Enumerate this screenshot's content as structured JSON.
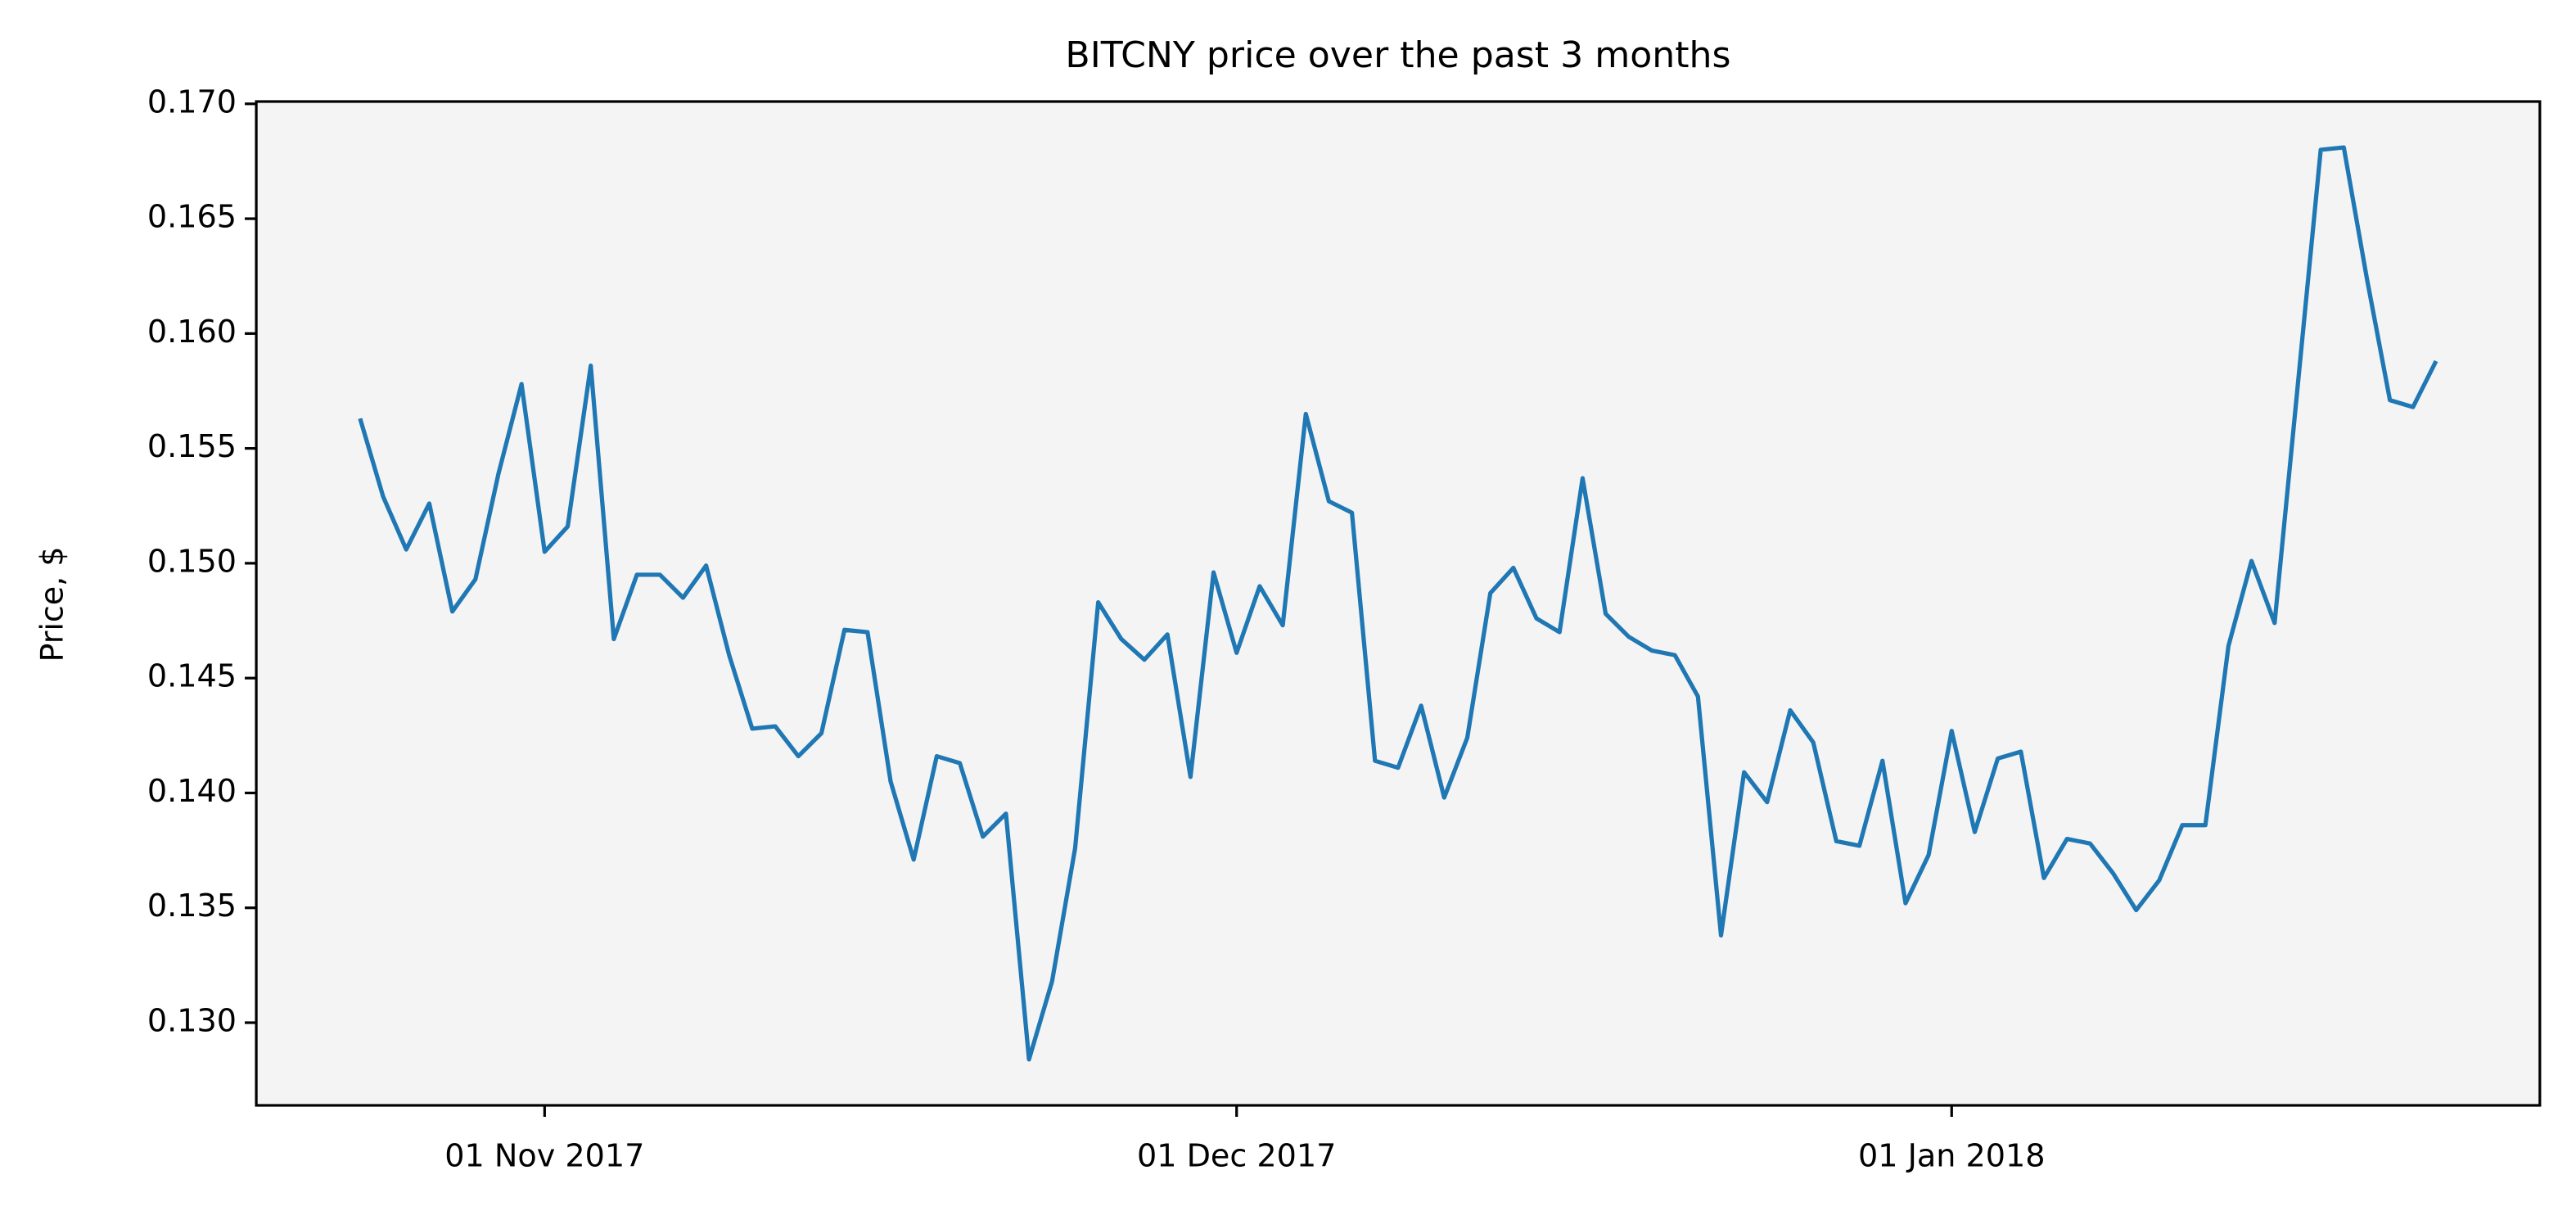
{
  "chart_data": {
    "type": "line",
    "title": "BITCNY price over the past 3 months",
    "y_label": "Price, $",
    "x": [
      "2017-10-24",
      "2017-10-25",
      "2017-10-26",
      "2017-10-27",
      "2017-10-28",
      "2017-10-29",
      "2017-10-30",
      "2017-10-31",
      "2017-11-01",
      "2017-11-02",
      "2017-11-03",
      "2017-11-04",
      "2017-11-05",
      "2017-11-06",
      "2017-11-07",
      "2017-11-08",
      "2017-11-09",
      "2017-11-10",
      "2017-11-11",
      "2017-11-12",
      "2017-11-13",
      "2017-11-14",
      "2017-11-15",
      "2017-11-16",
      "2017-11-17",
      "2017-11-18",
      "2017-11-19",
      "2017-11-20",
      "2017-11-21",
      "2017-11-22",
      "2017-11-23",
      "2017-11-24",
      "2017-11-25",
      "2017-11-26",
      "2017-11-27",
      "2017-11-28",
      "2017-11-29",
      "2017-11-30",
      "2017-12-01",
      "2017-12-02",
      "2017-12-03",
      "2017-12-04",
      "2017-12-05",
      "2017-12-06",
      "2017-12-07",
      "2017-12-08",
      "2017-12-09",
      "2017-12-10",
      "2017-12-11",
      "2017-12-12",
      "2017-12-13",
      "2017-12-14",
      "2017-12-15",
      "2017-12-16",
      "2017-12-17",
      "2017-12-18",
      "2017-12-19",
      "2017-12-20",
      "2017-12-21",
      "2017-12-22",
      "2017-12-23",
      "2017-12-24",
      "2017-12-25",
      "2017-12-26",
      "2017-12-27",
      "2017-12-28",
      "2017-12-29",
      "2017-12-30",
      "2017-12-31",
      "2018-01-01",
      "2018-01-02",
      "2018-01-03",
      "2018-01-04",
      "2018-01-05",
      "2018-01-06",
      "2018-01-07",
      "2018-01-08",
      "2018-01-09",
      "2018-01-10",
      "2018-01-11",
      "2018-01-12",
      "2018-01-13",
      "2018-01-14",
      "2018-01-15",
      "2018-01-16",
      "2018-01-17",
      "2018-01-18",
      "2018-01-19",
      "2018-01-20",
      "2018-01-21",
      "2018-01-22"
    ],
    "series": [
      {
        "color": "#1f77b4",
        "values": [
          0.1563,
          0.1529,
          0.1506,
          0.1526,
          0.1479,
          0.1493,
          0.1539,
          0.1578,
          0.1505,
          0.1516,
          0.1586,
          0.1467,
          0.1495,
          0.1495,
          0.1485,
          0.1499,
          0.146,
          0.1428,
          0.1429,
          0.1416,
          0.1426,
          0.1471,
          0.147,
          0.1405,
          0.1371,
          0.1416,
          0.1413,
          0.1381,
          0.1391,
          0.1284,
          0.1318,
          0.1376,
          0.1483,
          0.1467,
          0.1458,
          0.1469,
          0.1407,
          0.1496,
          0.1461,
          0.149,
          0.1473,
          0.1565,
          0.1527,
          0.1522,
          0.1414,
          0.1411,
          0.1438,
          0.1398,
          0.1424,
          0.1487,
          0.1498,
          0.1476,
          0.147,
          0.1537,
          0.1478,
          0.1468,
          0.1462,
          0.146,
          0.1442,
          0.1338,
          0.1409,
          0.1396,
          0.1436,
          0.1422,
          0.1379,
          0.1377,
          0.1414,
          0.1352,
          0.1373,
          0.1427,
          0.1383,
          0.1415,
          0.1418,
          0.1363,
          0.138,
          0.1378,
          0.1365,
          0.1349,
          0.1362,
          0.1386,
          0.1386,
          0.1464,
          0.1501,
          0.1474,
          0.1577,
          0.168,
          0.1681,
          0.1624,
          0.1571,
          0.1568,
          0.1588
        ]
      }
    ],
    "xlim": [
      "2017-10-19T12:00:00",
      "2018-01-26T12:00:00"
    ],
    "xticks": [
      {
        "value": "2017-11-01",
        "label": "01 Nov 2017"
      },
      {
        "value": "2017-12-01",
        "label": "01 Dec 2017"
      },
      {
        "value": "2018-01-01",
        "label": "01 Jan 2018"
      }
    ],
    "ylim": [
      0.1264,
      0.1701
    ],
    "yticks": [
      {
        "value": 0.13,
        "label": "0.130"
      },
      {
        "value": 0.135,
        "label": "0.135"
      },
      {
        "value": 0.14,
        "label": "0.140"
      },
      {
        "value": 0.145,
        "label": "0.145"
      },
      {
        "value": 0.15,
        "label": "0.150"
      },
      {
        "value": 0.155,
        "label": "0.155"
      },
      {
        "value": 0.16,
        "label": "0.160"
      },
      {
        "value": 0.165,
        "label": "0.165"
      },
      {
        "value": 0.17,
        "label": "0.170"
      }
    ],
    "background": "#f4f4f4"
  }
}
